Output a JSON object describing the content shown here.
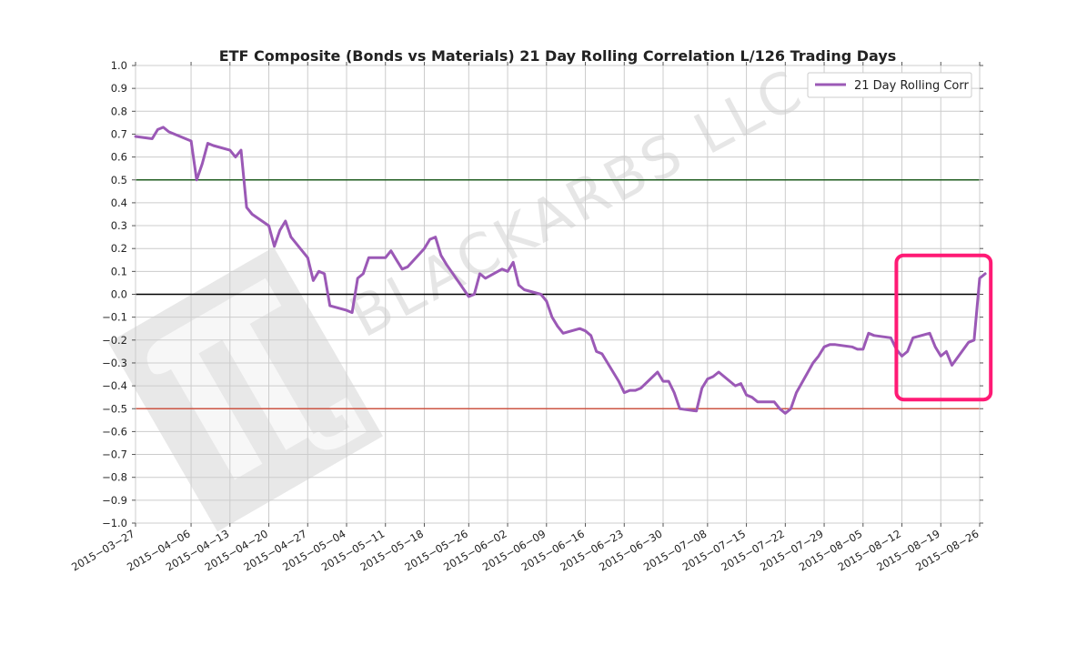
{
  "chart_data": {
    "type": "line",
    "title": "ETF Composite (Bonds vs Materials) 21 Day Rolling Correlation L/126 Trading Days",
    "xlabel": "",
    "ylabel": "",
    "ylim": [
      -1.0,
      1.0
    ],
    "xlim": [
      "2015-03-27",
      "2015-08-26"
    ],
    "grid": true,
    "legend": "top-right",
    "y_ticks": [
      "−1.0",
      "−0.9",
      "−0.8",
      "−0.7",
      "−0.6",
      "−0.5",
      "−0.4",
      "−0.3",
      "−0.2",
      "−0.1",
      "0.0",
      "0.1",
      "0.2",
      "0.3",
      "0.4",
      "0.5",
      "0.6",
      "0.7",
      "0.8",
      "0.9",
      "1.0"
    ],
    "y_tick_values": [
      -1.0,
      -0.9,
      -0.8,
      -0.7,
      -0.6,
      -0.5,
      -0.4,
      -0.3,
      -0.2,
      -0.1,
      0.0,
      0.1,
      0.2,
      0.3,
      0.4,
      0.5,
      0.6,
      0.7,
      0.8,
      0.9,
      1.0
    ],
    "x_ticks": [
      "2015−03−27",
      "2015−04−06",
      "2015−04−13",
      "2015−04−20",
      "2015−04−27",
      "2015−05−04",
      "2015−05−11",
      "2015−05−18",
      "2015−05−26",
      "2015−06−02",
      "2015−06−09",
      "2015−06−16",
      "2015−06−23",
      "2015−06−30",
      "2015−07−08",
      "2015−07−15",
      "2015−07−22",
      "2015−07−29",
      "2015−08−05",
      "2015−08−12",
      "2015−08−19",
      "2015−08−26"
    ],
    "x_tick_dates": [
      "2015-03-27",
      "2015-04-06",
      "2015-04-13",
      "2015-04-20",
      "2015-04-27",
      "2015-05-04",
      "2015-05-11",
      "2015-05-18",
      "2015-05-26",
      "2015-06-02",
      "2015-06-09",
      "2015-06-16",
      "2015-06-23",
      "2015-06-30",
      "2015-07-08",
      "2015-07-15",
      "2015-07-22",
      "2015-07-29",
      "2015-08-05",
      "2015-08-12",
      "2015-08-19",
      "2015-08-26"
    ],
    "reference_lines": [
      {
        "y": 0.5,
        "color": "#1f5c1f"
      },
      {
        "y": 0.0,
        "color": "#000000"
      },
      {
        "y": -0.5,
        "color": "#cc5544"
      }
    ],
    "highlight_box": {
      "x_start": "2015-08-11",
      "x_end": "2015-08-28",
      "y_min": -0.46,
      "y_max": 0.17,
      "color": "#ff1a75"
    },
    "series": [
      {
        "name": "21 Day Rolling Corr",
        "color": "#9b59b6",
        "points": [
          [
            "2015-03-27",
            0.69
          ],
          [
            "2015-03-30",
            0.68
          ],
          [
            "2015-03-31",
            0.72
          ],
          [
            "2015-04-01",
            0.73
          ],
          [
            "2015-04-02",
            0.71
          ],
          [
            "2015-04-06",
            0.67
          ],
          [
            "2015-04-07",
            0.5
          ],
          [
            "2015-04-08",
            0.57
          ],
          [
            "2015-04-09",
            0.66
          ],
          [
            "2015-04-10",
            0.65
          ],
          [
            "2015-04-13",
            0.63
          ],
          [
            "2015-04-14",
            0.6
          ],
          [
            "2015-04-15",
            0.63
          ],
          [
            "2015-04-16",
            0.38
          ],
          [
            "2015-04-17",
            0.35
          ],
          [
            "2015-04-20",
            0.3
          ],
          [
            "2015-04-21",
            0.21
          ],
          [
            "2015-04-22",
            0.28
          ],
          [
            "2015-04-23",
            0.32
          ],
          [
            "2015-04-24",
            0.25
          ],
          [
            "2015-04-27",
            0.16
          ],
          [
            "2015-04-28",
            0.06
          ],
          [
            "2015-04-29",
            0.1
          ],
          [
            "2015-04-30",
            0.09
          ],
          [
            "2015-05-01",
            -0.05
          ],
          [
            "2015-05-04",
            -0.07
          ],
          [
            "2015-05-05",
            -0.08
          ],
          [
            "2015-05-06",
            0.07
          ],
          [
            "2015-05-07",
            0.09
          ],
          [
            "2015-05-08",
            0.16
          ],
          [
            "2015-05-11",
            0.16
          ],
          [
            "2015-05-12",
            0.19
          ],
          [
            "2015-05-13",
            0.15
          ],
          [
            "2015-05-14",
            0.11
          ],
          [
            "2015-05-15",
            0.12
          ],
          [
            "2015-05-18",
            0.2
          ],
          [
            "2015-05-19",
            0.24
          ],
          [
            "2015-05-20",
            0.25
          ],
          [
            "2015-05-21",
            0.17
          ],
          [
            "2015-05-22",
            0.13
          ],
          [
            "2015-05-26",
            -0.01
          ],
          [
            "2015-05-27",
            0.0
          ],
          [
            "2015-05-28",
            0.09
          ],
          [
            "2015-05-29",
            0.07
          ],
          [
            "2015-06-01",
            0.11
          ],
          [
            "2015-06-02",
            0.1
          ],
          [
            "2015-06-03",
            0.14
          ],
          [
            "2015-06-04",
            0.04
          ],
          [
            "2015-06-05",
            0.02
          ],
          [
            "2015-06-08",
            0.0
          ],
          [
            "2015-06-09",
            -0.03
          ],
          [
            "2015-06-10",
            -0.1
          ],
          [
            "2015-06-11",
            -0.14
          ],
          [
            "2015-06-12",
            -0.17
          ],
          [
            "2015-06-15",
            -0.15
          ],
          [
            "2015-06-16",
            -0.16
          ],
          [
            "2015-06-17",
            -0.18
          ],
          [
            "2015-06-18",
            -0.25
          ],
          [
            "2015-06-19",
            -0.26
          ],
          [
            "2015-06-22",
            -0.38
          ],
          [
            "2015-06-23",
            -0.43
          ],
          [
            "2015-06-24",
            -0.42
          ],
          [
            "2015-06-25",
            -0.42
          ],
          [
            "2015-06-26",
            -0.41
          ],
          [
            "2015-06-29",
            -0.34
          ],
          [
            "2015-06-30",
            -0.38
          ],
          [
            "2015-07-01",
            -0.38
          ],
          [
            "2015-07-02",
            -0.43
          ],
          [
            "2015-07-03",
            -0.5
          ],
          [
            "2015-07-06",
            -0.51
          ],
          [
            "2015-07-07",
            -0.41
          ],
          [
            "2015-07-08",
            -0.37
          ],
          [
            "2015-07-09",
            -0.36
          ],
          [
            "2015-07-10",
            -0.34
          ],
          [
            "2015-07-13",
            -0.4
          ],
          [
            "2015-07-14",
            -0.39
          ],
          [
            "2015-07-15",
            -0.44
          ],
          [
            "2015-07-16",
            -0.45
          ],
          [
            "2015-07-17",
            -0.47
          ],
          [
            "2015-07-20",
            -0.47
          ],
          [
            "2015-07-21",
            -0.5
          ],
          [
            "2015-07-22",
            -0.52
          ],
          [
            "2015-07-23",
            -0.5
          ],
          [
            "2015-07-24",
            -0.43
          ],
          [
            "2015-07-27",
            -0.3
          ],
          [
            "2015-07-28",
            -0.27
          ],
          [
            "2015-07-29",
            -0.23
          ],
          [
            "2015-07-30",
            -0.22
          ],
          [
            "2015-07-31",
            -0.22
          ],
          [
            "2015-08-03",
            -0.23
          ],
          [
            "2015-08-04",
            -0.24
          ],
          [
            "2015-08-05",
            -0.24
          ],
          [
            "2015-08-06",
            -0.17
          ],
          [
            "2015-08-07",
            -0.18
          ],
          [
            "2015-08-10",
            -0.19
          ],
          [
            "2015-08-11",
            -0.24
          ],
          [
            "2015-08-12",
            -0.27
          ],
          [
            "2015-08-13",
            -0.25
          ],
          [
            "2015-08-14",
            -0.19
          ],
          [
            "2015-08-17",
            -0.17
          ],
          [
            "2015-08-18",
            -0.23
          ],
          [
            "2015-08-19",
            -0.27
          ],
          [
            "2015-08-20",
            -0.25
          ],
          [
            "2015-08-21",
            -0.31
          ],
          [
            "2015-08-24",
            -0.21
          ],
          [
            "2015-08-25",
            -0.2
          ],
          [
            "2015-08-26",
            0.07
          ],
          [
            "2015-08-27",
            0.09
          ]
        ]
      }
    ]
  },
  "watermark": {
    "text": "BLACKARBS LLC",
    "logo_icon": "pi-logo-icon"
  }
}
